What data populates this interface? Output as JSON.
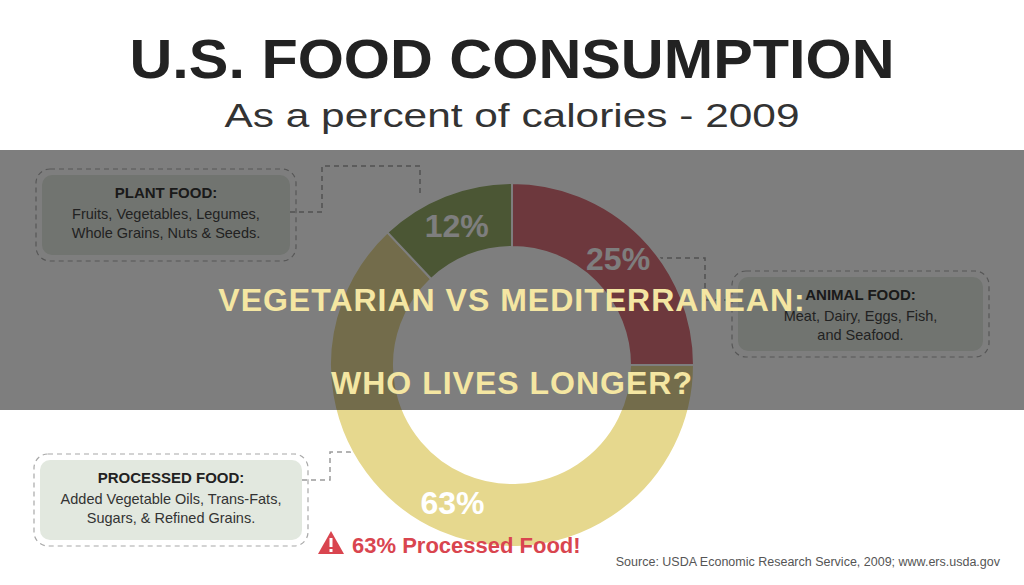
{
  "chart_data": {
    "type": "donut",
    "title": "U.S. FOOD CONSUMPTION",
    "subtitle": "As a percent of calories - 2009",
    "categories": [
      "ANIMAL FOOD:",
      "PROCESSED FOOD:",
      "PLANT FOOD:"
    ],
    "annotations": [
      [
        "Meat, Dairy, Eggs, Fish,",
        "and Seafood."
      ],
      [
        "Added Vegetable Oils, Trans-Fats,",
        "Sugars, & Refined Grains."
      ],
      [
        "Fruits, Vegetables, Legumes,",
        "Whole Grains, Nuts & Seeds."
      ]
    ],
    "values": [
      25,
      63,
      12
    ],
    "value_labels": [
      "25%",
      "63%",
      "12%"
    ],
    "colors": [
      "#d9646f",
      "#e6d88e",
      "#8ea75c"
    ],
    "data_labels": true,
    "callout": "63% Processed Food!",
    "source": "Source: USDA Economic Research Service, 2009; www.ers.usda.gov"
  },
  "banner": [
    "VEGETARIAN VS MEDITERRANEAN:",
    "WHO LIVES LONGER?"
  ]
}
